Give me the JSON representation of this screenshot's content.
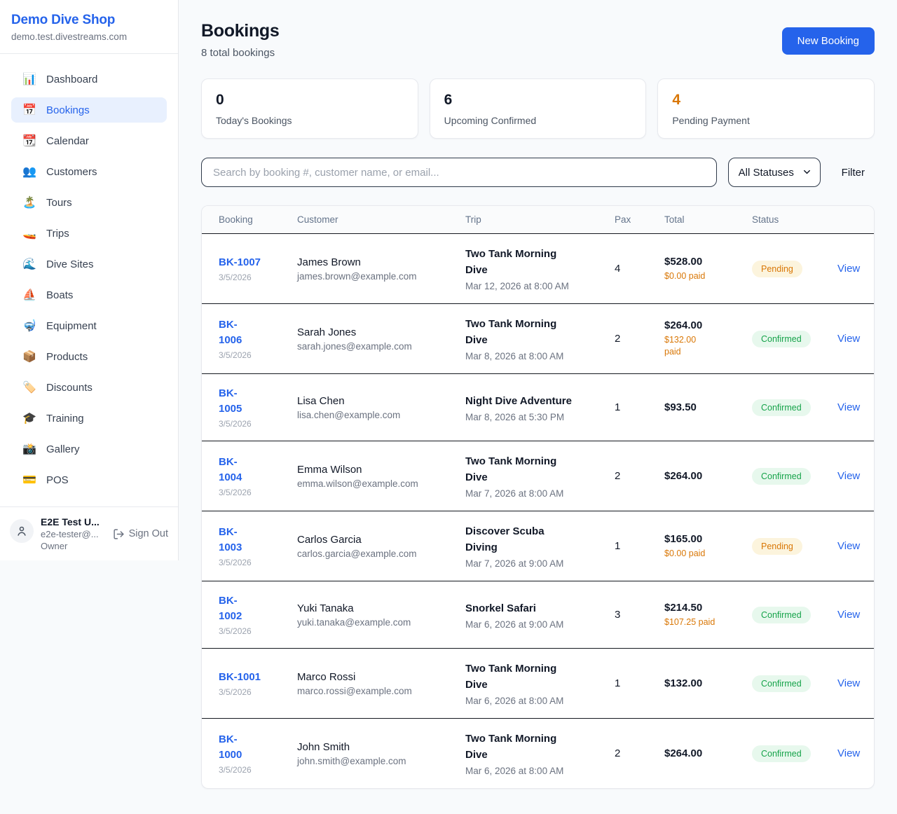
{
  "colors": {
    "accent_blue": "#2563eb",
    "warning_orange": "#d97706",
    "success_green": "#16a34a",
    "page_bg": "#f8fafc"
  },
  "sidebar": {
    "brand": {
      "name": "Demo Dive Shop",
      "domain": "demo.test.divestreams.com"
    },
    "nav": [
      {
        "label": "Dashboard",
        "icon": "bar-chart",
        "emoji": "📊",
        "active": false
      },
      {
        "label": "Bookings",
        "icon": "calendar",
        "emoji": "📅",
        "active": true
      },
      {
        "label": "Calendar",
        "icon": "tear-off-calendar",
        "emoji": "📆",
        "active": false
      },
      {
        "label": "Customers",
        "icon": "people",
        "emoji": "👥",
        "active": false
      },
      {
        "label": "Tours",
        "icon": "desert-island",
        "emoji": "🏝️",
        "active": false
      },
      {
        "label": "Trips",
        "icon": "speedboat",
        "emoji": "🚤",
        "active": false
      },
      {
        "label": "Dive Sites",
        "icon": "wave",
        "emoji": "🌊",
        "active": false
      },
      {
        "label": "Boats",
        "icon": "sailboat",
        "emoji": "⛵",
        "active": false
      },
      {
        "label": "Equipment",
        "icon": "diving-mask",
        "emoji": "🤿",
        "active": false
      },
      {
        "label": "Products",
        "icon": "package",
        "emoji": "📦",
        "active": false
      },
      {
        "label": "Discounts",
        "icon": "label-tag",
        "emoji": "🏷️",
        "active": false
      },
      {
        "label": "Training",
        "icon": "graduation-cap",
        "emoji": "🎓",
        "active": false
      },
      {
        "label": "Gallery",
        "icon": "camera-flash",
        "emoji": "📸",
        "active": false
      },
      {
        "label": "POS",
        "icon": "credit-card",
        "emoji": "💳",
        "active": false
      }
    ],
    "user": {
      "name": "E2E Test U...",
      "email": "e2e-tester@...",
      "role": "Owner",
      "sign_out_label": "Sign Out"
    }
  },
  "header": {
    "title": "Bookings",
    "subtitle": "8 total bookings",
    "new_booking_label": "New Booking"
  },
  "stats": [
    {
      "value": "0",
      "label": "Today's Bookings"
    },
    {
      "value": "6",
      "label": "Upcoming Confirmed"
    },
    {
      "value": "4",
      "label": "Pending Payment"
    }
  ],
  "filters": {
    "search_placeholder": "Search by booking #, customer name, or email...",
    "status_selected": "All Statuses",
    "filter_label": "Filter"
  },
  "table": {
    "columns": [
      "Booking",
      "Customer",
      "Trip",
      "Pax",
      "Total",
      "Status"
    ],
    "rows": [
      {
        "id": "BK-1007",
        "date": "3/5/2026",
        "customer": "James Brown",
        "email": "james.brown@example.com",
        "trip": "Two Tank Morning\nDive",
        "trip_datetime": "Mar 12, 2026 at 8:00 AM",
        "pax": "4",
        "total": "$528.00",
        "paid": "$0.00 paid",
        "status": "Pending",
        "action": "View"
      },
      {
        "id": "BK-\n1006",
        "date": "3/5/2026",
        "customer": "Sarah Jones",
        "email": "sarah.jones@example.com",
        "trip": "Two Tank Morning\nDive",
        "trip_datetime": "Mar 8, 2026 at 8:00 AM",
        "pax": "2",
        "total": "$264.00",
        "paid": "$132.00\npaid",
        "status": "Confirmed",
        "action": "View"
      },
      {
        "id": "BK-\n1005",
        "date": "3/5/2026",
        "customer": "Lisa Chen",
        "email": "lisa.chen@example.com",
        "trip": "Night Dive Adventure",
        "trip_datetime": "Mar 8, 2026 at 5:30 PM",
        "pax": "1",
        "total": "$93.50",
        "paid": "",
        "status": "Confirmed",
        "action": "View"
      },
      {
        "id": "BK-\n1004",
        "date": "3/5/2026",
        "customer": "Emma Wilson",
        "email": "emma.wilson@example.com",
        "trip": "Two Tank Morning\nDive",
        "trip_datetime": "Mar 7, 2026 at 8:00 AM",
        "pax": "2",
        "total": "$264.00",
        "paid": "",
        "status": "Confirmed",
        "action": "View"
      },
      {
        "id": "BK-\n1003",
        "date": "3/5/2026",
        "customer": "Carlos Garcia",
        "email": "carlos.garcia@example.com",
        "trip": "Discover Scuba\nDiving",
        "trip_datetime": "Mar 7, 2026 at 9:00 AM",
        "pax": "1",
        "total": "$165.00",
        "paid": "$0.00 paid",
        "status": "Pending",
        "action": "View"
      },
      {
        "id": "BK-\n1002",
        "date": "3/5/2026",
        "customer": "Yuki Tanaka",
        "email": "yuki.tanaka@example.com",
        "trip": "Snorkel Safari",
        "trip_datetime": "Mar 6, 2026 at 9:00 AM",
        "pax": "3",
        "total": "$214.50",
        "paid": "$107.25 paid",
        "status": "Confirmed",
        "action": "View"
      },
      {
        "id": "BK-1001",
        "date": "3/5/2026",
        "customer": "Marco Rossi",
        "email": "marco.rossi@example.com",
        "trip": "Two Tank Morning\nDive",
        "trip_datetime": "Mar 6, 2026 at 8:00 AM",
        "pax": "1",
        "total": "$132.00",
        "paid": "",
        "status": "Confirmed",
        "action": "View"
      },
      {
        "id": "BK-\n1000",
        "date": "3/5/2026",
        "customer": "John Smith",
        "email": "john.smith@example.com",
        "trip": "Two Tank Morning\nDive",
        "trip_datetime": "Mar 6, 2026 at 8:00 AM",
        "pax": "2",
        "total": "$264.00",
        "paid": "",
        "status": "Confirmed",
        "action": "View"
      }
    ]
  }
}
